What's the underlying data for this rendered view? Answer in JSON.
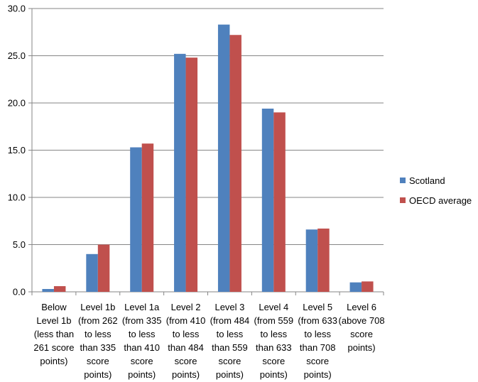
{
  "chart_data": {
    "type": "bar",
    "categories": [
      "Below Level 1b (less than 261 score points)",
      "Level 1b (from 262 to less than 335 score points)",
      "Level 1a (from 335 to less than 410 score points)",
      "Level 2 (from 410 to less than 484 score points)",
      "Level 3 (from 484 to less than 559 score points)",
      "Level 4 (from 559 to less than 633 score points)",
      "Level 5 (from 633 to less than 708 score points)",
      "Level 6 (above 708 score points)"
    ],
    "series": [
      {
        "name": "Scotland",
        "color": "#4f81bd",
        "values": [
          0.3,
          4.0,
          15.3,
          25.2,
          28.3,
          19.4,
          6.6,
          1.0
        ]
      },
      {
        "name": "OECD average",
        "color": "#c0504d",
        "values": [
          0.6,
          5.0,
          15.7,
          24.8,
          27.2,
          19.0,
          6.7,
          1.1
        ]
      }
    ],
    "ylim": [
      0,
      30
    ],
    "yticks": [
      {
        "value": 0,
        "label": "0.0"
      },
      {
        "value": 5,
        "label": "5.0"
      },
      {
        "value": 10,
        "label": "10.0"
      },
      {
        "value": 15,
        "label": "15.0"
      },
      {
        "value": 20,
        "label": "20.0"
      },
      {
        "value": 25,
        "label": "25.0"
      },
      {
        "value": 30,
        "label": "30.0"
      }
    ],
    "grid": true,
    "legend": "right"
  }
}
